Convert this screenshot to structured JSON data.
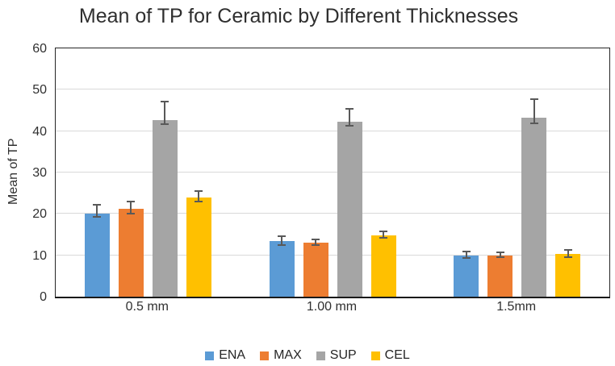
{
  "chart_data": {
    "type": "bar",
    "title": "Mean of TP for Ceramic by Different Thicknesses",
    "xlabel": "",
    "ylabel": "Mean of TP",
    "categories": [
      "0.5 mm",
      "1.00 mm",
      "1.5mm"
    ],
    "series": [
      {
        "name": "ENA",
        "color": "#5B9BD5",
        "values": [
          20.0,
          13.4,
          10.0
        ],
        "error_up": [
          2.5,
          1.5,
          1.1
        ],
        "error_down": [
          1.0,
          1.2,
          0.8
        ]
      },
      {
        "name": "MAX",
        "color": "#ED7D31",
        "values": [
          21.3,
          13.1,
          10.0
        ],
        "error_up": [
          1.8,
          1.0,
          0.9
        ],
        "error_down": [
          1.5,
          0.9,
          0.7
        ]
      },
      {
        "name": "SUP",
        "color": "#A5A5A5",
        "values": [
          42.7,
          42.3,
          43.2
        ],
        "error_up": [
          4.7,
          3.3,
          4.8
        ],
        "error_down": [
          1.2,
          1.2,
          1.5
        ]
      },
      {
        "name": "CEL",
        "color": "#FFC000",
        "values": [
          23.9,
          14.8,
          10.4
        ],
        "error_up": [
          1.9,
          1.2,
          1.1
        ],
        "error_down": [
          1.2,
          0.8,
          1.0
        ]
      }
    ],
    "ylim": [
      0,
      60
    ],
    "yticks": [
      0,
      10,
      20,
      30,
      40,
      50,
      60
    ],
    "grid": true,
    "legend_position": "bottom",
    "colors": {
      "gridline": "#D9D9D9",
      "axis_border": "#262626",
      "error_bar": "#595959",
      "text": "#303030"
    }
  }
}
